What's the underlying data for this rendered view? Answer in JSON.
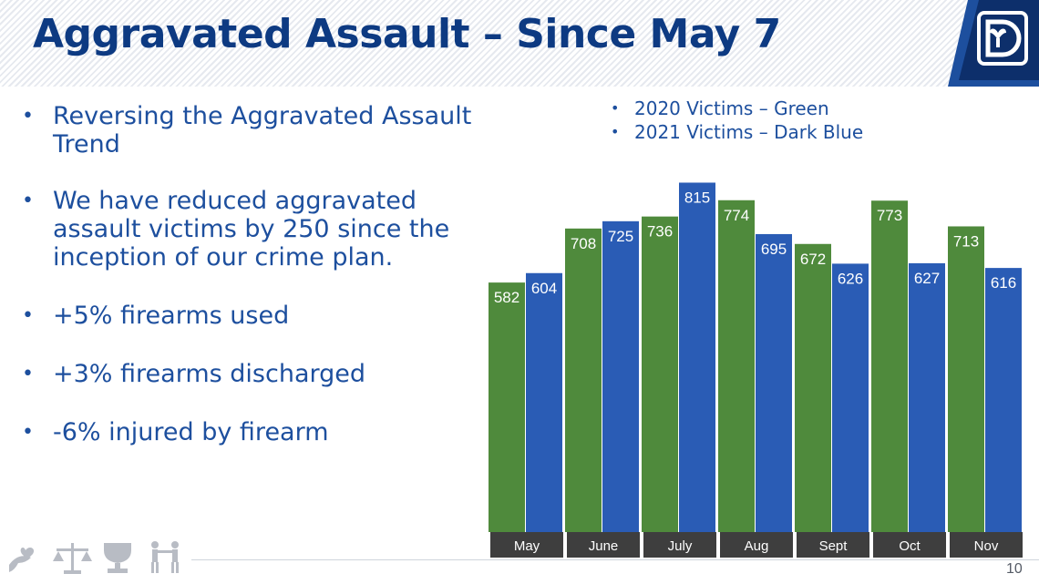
{
  "slide": {
    "title": "Aggravated Assault – Since May 7",
    "page_number": "10"
  },
  "bullets": [
    "Reversing the Aggravated Assault Trend",
    "We have reduced aggravated assault victims by 250 since the inception of our crime plan.",
    "+5% firearms used",
    "+3% firearms discharged",
    "-6% injured by firearm"
  ],
  "legend": [
    "2020 Victims – Green",
    "2021 Victims – Dark Blue"
  ],
  "colors": {
    "title": "#0d3a82",
    "text": "#1d4f9e",
    "green": "#4f8a3c",
    "blue": "#2a5cb5",
    "category_band": "#3e3e3e"
  },
  "chart_data": {
    "type": "bar",
    "categories": [
      "May",
      "June",
      "July",
      "Aug",
      "Sept",
      "Oct",
      "Nov"
    ],
    "series": [
      {
        "values": [
          582,
          708,
          736,
          774,
          672,
          773,
          713
        ],
        "color": "#4f8a3c"
      },
      {
        "values": [
          604,
          725,
          815,
          695,
          626,
          627,
          616
        ],
        "color": "#2a5cb5"
      }
    ],
    "ylim": [
      0,
      850
    ],
    "grid": false,
    "data_labels": true
  }
}
